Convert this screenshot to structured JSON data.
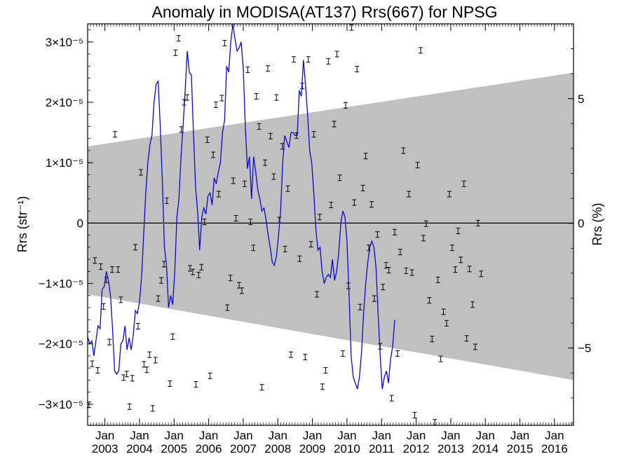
{
  "chart_data": {
    "type": "line",
    "title": "Anomaly in MODISA(AT137) Rrs(667) for NPSG",
    "ylabel": "Rrs (str⁻¹)",
    "y2label": "Rrs (%)",
    "xlim": [
      2002.5,
      2016.55
    ],
    "ylim": [
      -3.35e-05,
      3.3e-05
    ],
    "y2lim": [
      -8.1,
      8.0
    ],
    "grid": false,
    "y_ticks": [
      {
        "value": -3e-05,
        "label": "−3×10⁻⁵"
      },
      {
        "value": -2e-05,
        "label": "−2×10⁻⁵"
      },
      {
        "value": -1e-05,
        "label": "−1×10⁻⁵"
      },
      {
        "value": 0,
        "label": "0"
      },
      {
        "value": 1e-05,
        "label": "1×10⁻⁵"
      },
      {
        "value": 2e-05,
        "label": "2×10⁻⁵"
      },
      {
        "value": 3e-05,
        "label": "3×10⁻⁵"
      }
    ],
    "y2_ticks": [
      {
        "value": -5,
        "label": "−5"
      },
      {
        "value": 0,
        "label": "0"
      },
      {
        "value": 5,
        "label": "5"
      }
    ],
    "x_ticks": [
      {
        "value": 2003.0,
        "month": "Jan",
        "year": "2003"
      },
      {
        "value": 2004.0,
        "month": "Jan",
        "year": "2004"
      },
      {
        "value": 2005.0,
        "month": "Jan",
        "year": "2005"
      },
      {
        "value": 2006.0,
        "month": "Jan",
        "year": "2006"
      },
      {
        "value": 2007.0,
        "month": "Jan",
        "year": "2007"
      },
      {
        "value": 2008.0,
        "month": "Jan",
        "year": "2008"
      },
      {
        "value": 2009.0,
        "month": "Jan",
        "year": "2009"
      },
      {
        "value": 2010.0,
        "month": "Jan",
        "year": "2010"
      },
      {
        "value": 2011.0,
        "month": "Jan",
        "year": "2011"
      },
      {
        "value": 2012.0,
        "month": "Jan",
        "year": "2012"
      },
      {
        "value": 2013.0,
        "month": "Jan",
        "year": "2013"
      },
      {
        "value": 2014.0,
        "month": "Jan",
        "year": "2014"
      },
      {
        "value": 2015.0,
        "month": "Jan",
        "year": "2015"
      },
      {
        "value": 2016.0,
        "month": "Jan",
        "year": "2016"
      }
    ],
    "band": {
      "x": [
        2002.5,
        2016.55
      ],
      "upper": [
        1.27e-05,
        2.49e-05
      ],
      "lower": [
        -1.18e-05,
        -2.6e-05
      ]
    },
    "zero_line": 0,
    "points": [
      [
        2002.54,
        -3.01e-05
      ],
      [
        2002.63,
        -2.33e-05
      ],
      [
        2002.71,
        -6.2e-06
      ],
      [
        2002.79,
        -2.44e-05
      ],
      [
        2002.88,
        -7.2e-06
      ],
      [
        2002.96,
        -1.38e-05
      ],
      [
        2003.04,
        -9.4e-06
      ],
      [
        2003.13,
        -1.97e-05
      ],
      [
        2003.21,
        -7.7e-06
      ],
      [
        2003.29,
        1.47e-05
      ],
      [
        2003.38,
        -7.7e-06
      ],
      [
        2003.46,
        -1.27e-05
      ],
      [
        2003.54,
        -2.56e-05
      ],
      [
        2003.63,
        -2.5e-05
      ],
      [
        2003.71,
        -3.04e-05
      ],
      [
        2003.79,
        -2.57e-05
      ],
      [
        2003.88,
        -4e-06
      ],
      [
        2003.96,
        -1.71e-05
      ],
      [
        2004.04,
        8.4e-06
      ],
      [
        2004.13,
        -2.34e-05
      ],
      [
        2004.21,
        -2.43e-05
      ],
      [
        2004.29,
        -2.18e-05
      ],
      [
        2004.38,
        -3.07e-05
      ],
      [
        2004.46,
        -2.27e-05
      ],
      [
        2004.54,
        -1.25e-05
      ],
      [
        2004.63,
        -9.5e-06
      ],
      [
        2004.71,
        -6.8e-06
      ],
      [
        2004.79,
        3.7e-06
      ],
      [
        2004.88,
        -2.66e-05
      ],
      [
        2004.96,
        -1.88e-05
      ],
      [
        2005.04,
        2.82e-05
      ],
      [
        2005.13,
        3.06e-05
      ],
      [
        2005.21,
        1.55e-05
      ],
      [
        2005.29,
        2e-05
      ],
      [
        2005.38,
        2.08e-05
      ],
      [
        2005.46,
        -7.5e-06
      ],
      [
        2005.54,
        -8.1e-06
      ],
      [
        2005.63,
        -2.67e-05
      ],
      [
        2005.71,
        -8.6e-06
      ],
      [
        2005.79,
        -7.3e-06
      ],
      [
        2005.88,
        2e-07
      ],
      [
        2005.96,
        1.38e-05
      ],
      [
        2006.04,
        -2.53e-05
      ],
      [
        2006.13,
        1.13e-05
      ],
      [
        2006.21,
        1.96e-05
      ],
      [
        2006.29,
        4.8e-06
      ],
      [
        2006.38,
        2.07e-05
      ],
      [
        2006.46,
        2.98e-05
      ],
      [
        2006.54,
        -1.4e-05
      ],
      [
        2006.63,
        -9.1e-06
      ],
      [
        2006.71,
        7e-06
      ],
      [
        2006.79,
        8e-07
      ],
      [
        2006.88,
        -1.03e-05
      ],
      [
        2006.96,
        -1.12e-05
      ],
      [
        2007.04,
        6.5e-06
      ],
      [
        2007.13,
        2.54e-05
      ],
      [
        2007.21,
        2e-07
      ],
      [
        2007.29,
        -4.1e-06
      ],
      [
        2007.38,
        2.1e-05
      ],
      [
        2007.46,
        1.6e-05
      ],
      [
        2007.54,
        -2.72e-05
      ],
      [
        2007.63,
        1e-05
      ],
      [
        2007.71,
        2.56e-05
      ],
      [
        2007.79,
        1.44e-05
      ],
      [
        2007.88,
        7.7e-06
      ],
      [
        2007.96,
        2.08e-05
      ],
      [
        2008.04,
        5e-07
      ],
      [
        2008.13,
        1.27e-05
      ],
      [
        2008.21,
        -4.3e-06
      ],
      [
        2008.29,
        5.7e-06
      ],
      [
        2008.38,
        -2.18e-05
      ],
      [
        2008.46,
        2.71e-05
      ],
      [
        2008.54,
        1.45e-05
      ],
      [
        2008.63,
        -5.9e-06
      ],
      [
        2008.71,
        2.27e-05
      ],
      [
        2008.79,
        -2.22e-05
      ],
      [
        2008.88,
        2.71e-05
      ],
      [
        2008.96,
        -3.5e-06
      ],
      [
        2009.04,
        1.47e-05
      ],
      [
        2009.13,
        -1.18e-05
      ],
      [
        2009.21,
        1e-06
      ],
      [
        2009.29,
        -2.71e-05
      ],
      [
        2009.38,
        -2.44e-05
      ],
      [
        2009.46,
        2.68e-05
      ],
      [
        2009.54,
        3e-06
      ],
      [
        2009.63,
        1.64e-05
      ],
      [
        2009.71,
        2.8e-05
      ],
      [
        2009.79,
        7.5e-06
      ],
      [
        2009.88,
        -2.16e-05
      ],
      [
        2009.96,
        1.95e-05
      ],
      [
        2010.04,
        -1.04e-05
      ],
      [
        2010.13,
        3.24e-05
      ],
      [
        2010.21,
        3.4e-06
      ],
      [
        2010.29,
        2.55e-05
      ],
      [
        2010.38,
        -1.39e-05
      ],
      [
        2010.46,
        5.8e-06
      ],
      [
        2010.54,
        1.11e-05
      ],
      [
        2010.63,
        -4.1e-06
      ],
      [
        2010.71,
        3.1e-06
      ],
      [
        2010.79,
        -1.25e-05
      ],
      [
        2010.88,
        -1.9e-06
      ],
      [
        2010.96,
        -2.04e-05
      ],
      [
        2011.04,
        -1.06e-05
      ],
      [
        2011.13,
        -7e-06
      ],
      [
        2011.21,
        -7.8e-06
      ],
      [
        2011.29,
        -2.9e-05
      ],
      [
        2011.38,
        -1.5e-06
      ],
      [
        2011.46,
        -2.16e-05
      ],
      [
        2011.54,
        -4.8e-06
      ],
      [
        2011.63,
        1.2e-05
      ],
      [
        2011.71,
        -7.9e-06
      ],
      [
        2011.79,
        4.8e-06
      ],
      [
        2011.88,
        -8.2e-06
      ],
      [
        2011.96,
        -3.18e-05
      ],
      [
        2012.04,
        9.6e-06
      ],
      [
        2012.13,
        2.86e-05
      ],
      [
        2012.21,
        -2.5e-06
      ],
      [
        2012.29,
        -1e-07
      ],
      [
        2012.38,
        -1.28e-05
      ],
      [
        2012.46,
        -1.92e-05
      ],
      [
        2012.54,
        -3.3e-05
      ],
      [
        2012.63,
        -9.4e-06
      ],
      [
        2012.71,
        -2.25e-05
      ],
      [
        2012.79,
        -1.47e-05
      ],
      [
        2012.88,
        -1.66e-05
      ],
      [
        2012.96,
        4.8e-06
      ],
      [
        2013.04,
        -4.1e-06
      ],
      [
        2013.13,
        -7.7e-06
      ],
      [
        2013.21,
        -1.3e-06
      ],
      [
        2013.29,
        -6.1e-06
      ],
      [
        2013.38,
        6.5e-06
      ],
      [
        2013.46,
        -1.91e-05
      ],
      [
        2013.54,
        -7.6e-06
      ],
      [
        2013.63,
        -1.35e-05
      ],
      [
        2013.71,
        -2.05e-05
      ],
      [
        2013.79,
        0.0
      ],
      [
        2013.88,
        -8.4e-06
      ]
    ],
    "series": [
      {
        "type": "line",
        "color": "#0a0ad2",
        "points": [
          [
            2002.5,
            -1.88e-05
          ],
          [
            2002.56,
            -2e-05
          ],
          [
            2002.62,
            -1.95e-05
          ],
          [
            2002.68,
            -2.2e-05
          ],
          [
            2002.74,
            -1.95e-05
          ],
          [
            2002.8,
            -1.7e-05
          ],
          [
            2002.86,
            -1.75e-05
          ],
          [
            2002.92,
            -1.1e-05
          ],
          [
            2002.98,
            -1.05e-05
          ],
          [
            2003.04,
            -8e-06
          ],
          [
            2003.1,
            -9.5e-06
          ],
          [
            2003.16,
            -1.2e-05
          ],
          [
            2003.22,
            -1.75e-05
          ],
          [
            2003.28,
            -2.45e-05
          ],
          [
            2003.34,
            -2.5e-05
          ],
          [
            2003.4,
            -2.45e-05
          ],
          [
            2003.46,
            -2e-05
          ],
          [
            2003.52,
            -1.95e-05
          ],
          [
            2003.58,
            -1.7e-05
          ],
          [
            2003.64,
            -2.1e-05
          ],
          [
            2003.7,
            -1.9e-05
          ],
          [
            2003.76,
            -2.1e-05
          ],
          [
            2003.82,
            -1.85e-05
          ],
          [
            2003.88,
            -1.45e-05
          ],
          [
            2003.94,
            -1.5e-05
          ],
          [
            2004.0,
            -1.3e-05
          ],
          [
            2004.06,
            -9e-06
          ],
          [
            2004.12,
            -2e-06
          ],
          [
            2004.18,
            5e-06
          ],
          [
            2004.24,
            1e-05
          ],
          [
            2004.3,
            1.3e-05
          ],
          [
            2004.36,
            1.45e-05
          ],
          [
            2004.42,
            2e-05
          ],
          [
            2004.48,
            2.3e-05
          ],
          [
            2004.54,
            2.35e-05
          ],
          [
            2004.6,
            1.6e-05
          ],
          [
            2004.66,
            7e-06
          ],
          [
            2004.72,
            -4e-06
          ],
          [
            2004.78,
            -7e-06
          ],
          [
            2004.84,
            -1.4e-05
          ],
          [
            2004.9,
            -1.2e-05
          ],
          [
            2004.96,
            -1.35e-05
          ],
          [
            2005.02,
            -8e-06
          ],
          [
            2005.08,
            1e-06
          ],
          [
            2005.14,
            4e-06
          ],
          [
            2005.2,
            1.1e-05
          ],
          [
            2005.26,
            1.6e-05
          ],
          [
            2005.32,
            2.2e-05
          ],
          [
            2005.38,
            2.85e-05
          ],
          [
            2005.44,
            2.5e-05
          ],
          [
            2005.5,
            2.45e-05
          ],
          [
            2005.56,
            1.5e-05
          ],
          [
            2005.62,
            6e-06
          ],
          [
            2005.68,
            2e-06
          ],
          [
            2005.74,
            -4.5e-06
          ],
          [
            2005.8,
            1e-06
          ],
          [
            2005.86,
            2.5e-06
          ],
          [
            2005.92,
            1.5e-06
          ],
          [
            2005.98,
            4.5e-06
          ],
          [
            2006.04,
            5e-06
          ],
          [
            2006.1,
            3e-06
          ],
          [
            2006.16,
            7.5e-06
          ],
          [
            2006.22,
            6.5e-06
          ],
          [
            2006.28,
            8.5e-06
          ],
          [
            2006.34,
            1e-05
          ],
          [
            2006.4,
            1.5e-05
          ],
          [
            2006.46,
            1.7e-05
          ],
          [
            2006.52,
            2.6e-05
          ],
          [
            2006.58,
            2.5e-05
          ],
          [
            2006.64,
            3e-05
          ],
          [
            2006.7,
            3.3e-05
          ],
          [
            2006.76,
            3.05e-05
          ],
          [
            2006.82,
            2.85e-05
          ],
          [
            2006.88,
            2.9e-05
          ],
          [
            2006.94,
            3e-05
          ],
          [
            2007.0,
            2.55e-05
          ],
          [
            2007.06,
            1.6e-05
          ],
          [
            2007.12,
            9e-06
          ],
          [
            2007.18,
            1.1e-05
          ],
          [
            2007.24,
            4e-06
          ],
          [
            2007.3,
            1.1e-05
          ],
          [
            2007.36,
            8.5e-06
          ],
          [
            2007.42,
            5.5e-06
          ],
          [
            2007.48,
            4e-06
          ],
          [
            2007.54,
            2e-06
          ],
          [
            2007.6,
            2.5e-06
          ],
          [
            2007.66,
            5e-07
          ],
          [
            2007.72,
            -2e-06
          ],
          [
            2007.78,
            -4e-06
          ],
          [
            2007.84,
            -6.5e-06
          ],
          [
            2007.9,
            -7e-06
          ],
          [
            2007.96,
            -5.5e-06
          ],
          [
            2008.02,
            -2e-06
          ],
          [
            2008.08,
            2e-06
          ],
          [
            2008.14,
            1e-05
          ],
          [
            2008.2,
            1.45e-05
          ],
          [
            2008.26,
            1.35e-05
          ],
          [
            2008.32,
            1.25e-05
          ],
          [
            2008.38,
            1.5e-05
          ],
          [
            2008.44,
            1.5e-05
          ],
          [
            2008.5,
            1.45e-05
          ],
          [
            2008.56,
            1.45e-05
          ],
          [
            2008.62,
            2.2e-05
          ],
          [
            2008.68,
            2.1e-05
          ],
          [
            2008.74,
            2.7e-05
          ],
          [
            2008.8,
            2.3e-05
          ],
          [
            2008.86,
            1.8e-05
          ],
          [
            2008.92,
            1.2e-05
          ],
          [
            2008.98,
            1e-05
          ],
          [
            2009.04,
            5e-06
          ],
          [
            2009.1,
            -1e-06
          ],
          [
            2009.16,
            -4.5e-06
          ],
          [
            2009.22,
            -4e-06
          ],
          [
            2009.28,
            -8e-06
          ],
          [
            2009.34,
            -1e-05
          ],
          [
            2009.4,
            -9e-06
          ],
          [
            2009.46,
            -8.5e-06
          ],
          [
            2009.52,
            -9e-06
          ],
          [
            2009.58,
            -6e-06
          ],
          [
            2009.64,
            -9.5e-06
          ],
          [
            2009.7,
            -8e-06
          ],
          [
            2009.76,
            -5e-06
          ],
          [
            2009.82,
            0.0
          ],
          [
            2009.88,
            2e-06
          ],
          [
            2009.94,
            1e-06
          ],
          [
            2010.0,
            -3e-06
          ],
          [
            2010.06,
            -1.2e-05
          ],
          [
            2010.12,
            -2.2e-05
          ],
          [
            2010.18,
            -2.55e-05
          ],
          [
            2010.24,
            -2.65e-05
          ],
          [
            2010.3,
            -2.75e-05
          ],
          [
            2010.36,
            -2.55e-05
          ],
          [
            2010.42,
            -2.15e-05
          ],
          [
            2010.48,
            -1.5e-05
          ],
          [
            2010.54,
            -1e-05
          ],
          [
            2010.6,
            -6.5e-06
          ],
          [
            2010.66,
            -4e-06
          ],
          [
            2010.72,
            -3e-06
          ],
          [
            2010.78,
            -4e-06
          ],
          [
            2010.84,
            -7.5e-06
          ],
          [
            2010.9,
            -1.5e-05
          ],
          [
            2010.96,
            -2.2e-05
          ],
          [
            2011.02,
            -2.75e-05
          ],
          [
            2011.08,
            -2.55e-05
          ],
          [
            2011.14,
            -2.45e-05
          ],
          [
            2011.2,
            -2.65e-05
          ],
          [
            2011.26,
            -2.25e-05
          ],
          [
            2011.32,
            -2.05e-05
          ],
          [
            2011.38,
            -1.6e-05
          ]
        ]
      }
    ]
  }
}
